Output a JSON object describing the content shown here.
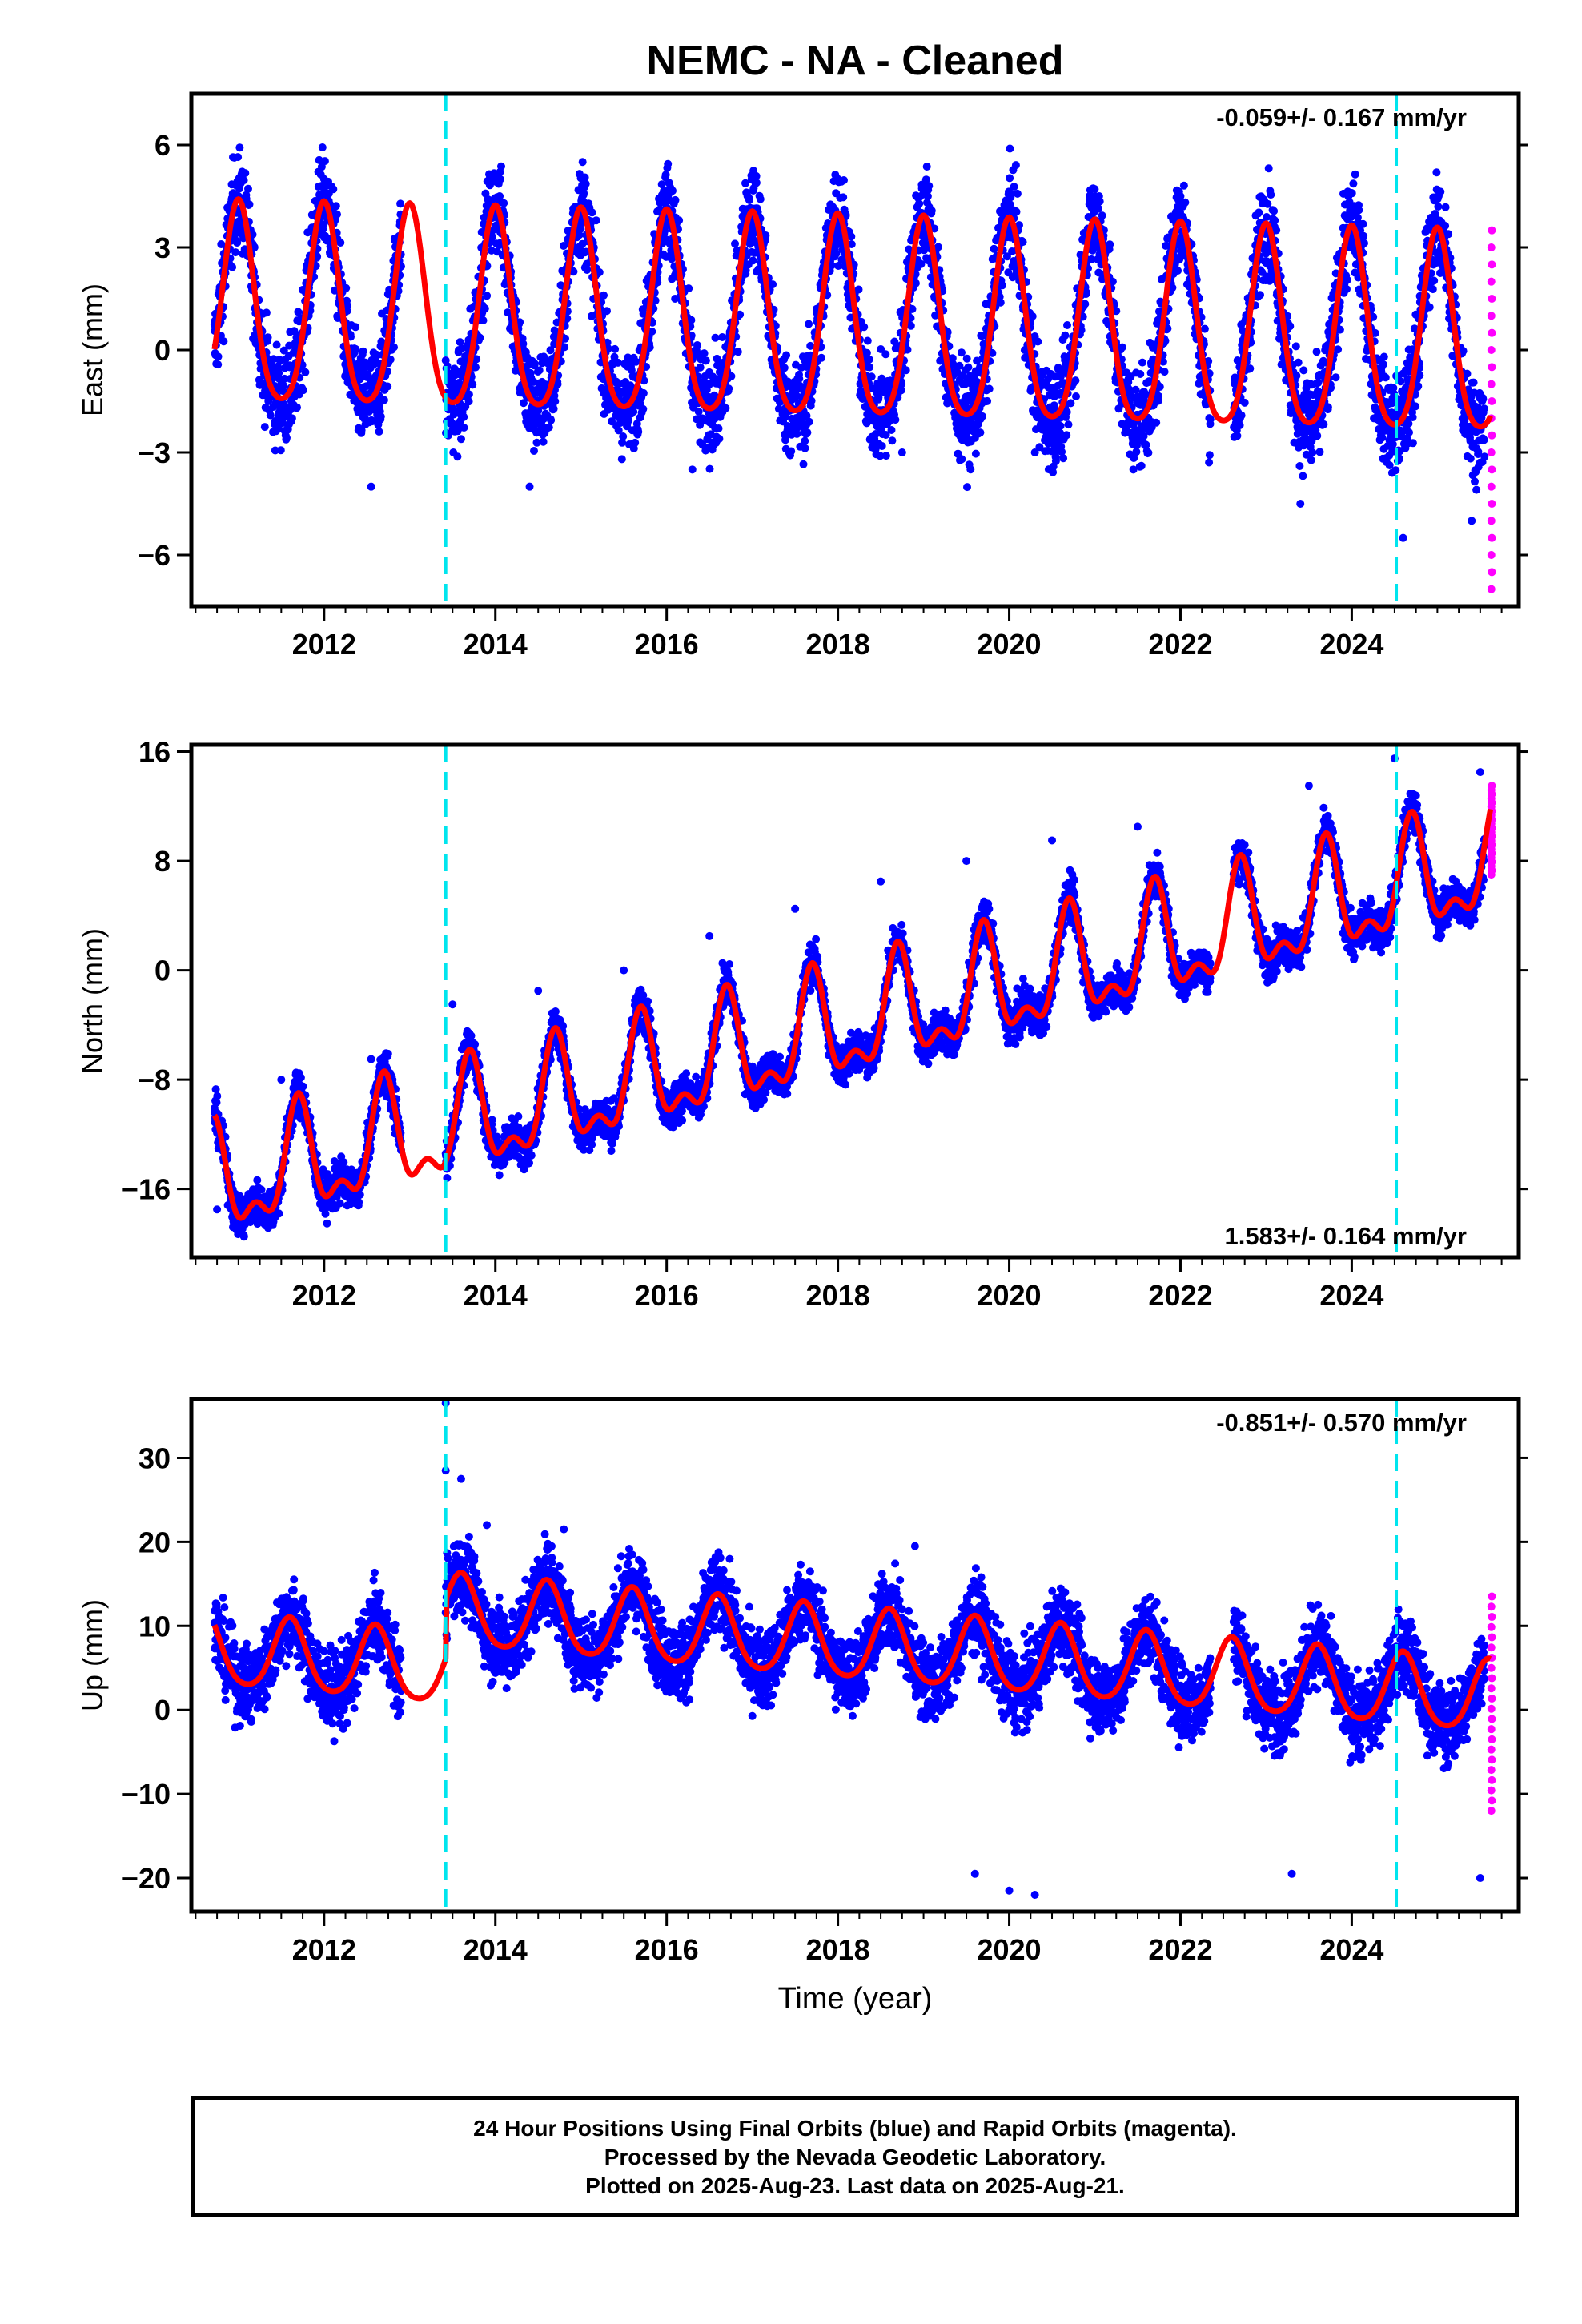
{
  "title": "NEMC  - NA - Cleaned",
  "xlabel": "Time (year)",
  "colors": {
    "final": "#0000ff",
    "rapid": "#ff00ff",
    "model": "#ff0000",
    "steps": "#00e5ee",
    "frame": "#000000"
  },
  "chart_data": [
    {
      "type": "scatter",
      "ylabel": "East (mm)",
      "xlim": [
        2010.45,
        2025.95
      ],
      "ylim": [
        -7.5,
        7.5
      ],
      "yticks": [
        6,
        3,
        0,
        -3,
        -6
      ],
      "yticklabels": [
        "6",
        "3",
        "0",
        "−3",
        "−6"
      ],
      "xticks": [
        2012,
        2014,
        2016,
        2018,
        2020,
        2022,
        2024
      ],
      "xticklabels": [
        "2012",
        "2014",
        "2016",
        "2018",
        "2020",
        "2022",
        "2024"
      ],
      "rate_label": "-0.059+/- 0.167 mm/yr",
      "rate_position": "top-right",
      "step_lines": [
        2013.42,
        2024.52
      ],
      "model": {
        "trend": -0.059,
        "ref": 2018,
        "offset": 0.6,
        "amplitude": 2.9,
        "phase": 2011.0,
        "semi_amplitude": 0.5
      },
      "series": [
        {
          "name": "Final Orbits",
          "data_segments": [
            [
              2010.72,
              2012.9
            ],
            [
              2013.42,
              2022.35
            ],
            [
              2022.62,
              2025.55
            ]
          ],
          "scatter": 1.3,
          "x": [
            2011.0,
            2011.35,
            2012.0,
            2012.55,
            2013.45,
            2014.05,
            2014.4,
            2015.0,
            2016.3,
            2018.75,
            2019.05,
            2020.0,
            2020.3,
            2021.05,
            2021.45,
            2022.0,
            2023.4,
            2024.1,
            2024.6,
            2025.4
          ],
          "y": [
            4.5,
            -1.5,
            5.0,
            -4.0,
            -2.5,
            4.5,
            -4.0,
            4.0,
            -3.5,
            -3.0,
            4.5,
            4.0,
            -3.0,
            4.5,
            -3.5,
            4.5,
            -4.5,
            3.5,
            -5.5,
            -5.0
          ]
        },
        {
          "name": "Rapid Orbits",
          "x": [
            2025.63
          ],
          "y_range": [
            -7.0,
            3.5
          ]
        }
      ]
    },
    {
      "type": "scatter",
      "ylabel": "North (mm)",
      "xlim": [
        2010.45,
        2025.95
      ],
      "ylim": [
        -21,
        16.5
      ],
      "yticks": [
        16,
        8,
        0,
        -8,
        -16
      ],
      "yticklabels": [
        "16",
        "8",
        "0",
        "−8",
        "−16"
      ],
      "xticks": [
        2012,
        2014,
        2016,
        2018,
        2020,
        2022,
        2024
      ],
      "xticklabels": [
        "2012",
        "2014",
        "2016",
        "2018",
        "2020",
        "2022",
        "2024"
      ],
      "rate_label": "1.583+/- 0.164 mm/yr",
      "rate_position": "bottom-right",
      "step_lines": [
        2013.42,
        2024.52
      ],
      "model": {
        "trend": 1.583,
        "ref": 2018,
        "offset": -4.4,
        "amplitude": 3.6,
        "phase": 2010.7,
        "semi_amplitude": 1.8
      },
      "series": [
        {
          "name": "Final Orbits",
          "data_segments": [
            [
              2010.72,
              2012.9
            ],
            [
              2013.42,
              2022.35
            ],
            [
              2022.62,
              2025.55
            ]
          ],
          "scatter": 1.4,
          "x": [
            2010.75,
            2011.5,
            2012.0,
            2012.55,
            2013.5,
            2014.5,
            2015.5,
            2016.5,
            2017.5,
            2018.5,
            2019.5,
            2020.5,
            2021.5,
            2022.9,
            2023.5,
            2024.5,
            2025.0,
            2025.5
          ],
          "y": [
            -17.5,
            -8.0,
            -16.5,
            -6.5,
            -2.5,
            -1.5,
            0.0,
            2.5,
            4.5,
            6.5,
            8.0,
            9.5,
            10.5,
            4.0,
            13.5,
            15.5,
            4.5,
            14.5
          ]
        },
        {
          "name": "Rapid Orbits",
          "x": [
            2025.63
          ],
          "y_range": [
            7.0,
            13.5
          ]
        }
      ]
    },
    {
      "type": "scatter",
      "ylabel": "Up (mm)",
      "xlim": [
        2010.45,
        2025.95
      ],
      "ylim": [
        -24,
        37
      ],
      "yticks": [
        30,
        20,
        10,
        0,
        -10,
        -20
      ],
      "yticklabels": [
        "30",
        "20",
        "10",
        "0",
        "−10",
        "−20"
      ],
      "xticks": [
        2012,
        2014,
        2016,
        2018,
        2020,
        2022,
        2024
      ],
      "xticklabels": [
        "2012",
        "2014",
        "2016",
        "2018",
        "2020",
        "2022",
        "2024"
      ],
      "rate_label": "-0.851+/- 0.570 mm/yr",
      "rate_position": "top-right",
      "step_lines": [
        2013.42,
        2024.52
      ],
      "model": {
        "trend": -0.851,
        "ref": 2018,
        "offset": 0.8,
        "amplitude": 4.2,
        "phase": 2010.6,
        "semi_amplitude": 0.6,
        "step": {
          "at": 2013.42,
          "size": 7.0
        }
      },
      "series": [
        {
          "name": "Final Orbits",
          "data_segments": [
            [
              2010.72,
              2012.9
            ],
            [
              2013.42,
              2022.35
            ],
            [
              2022.62,
              2025.55
            ]
          ],
          "scatter": 4.2,
          "x": [
            2013.42,
            2013.42,
            2013.6,
            2013.9,
            2014.8,
            2018.9,
            2019.6,
            2020.0,
            2020.3,
            2023.3,
            2025.5
          ],
          "y": [
            36.5,
            28.5,
            27.5,
            22.0,
            21.5,
            19.5,
            -19.5,
            -21.5,
            -22.0,
            -19.5,
            -20.0
          ]
        },
        {
          "name": "Rapid Orbits",
          "x": [
            2025.63
          ],
          "y_range": [
            -12.0,
            13.5
          ]
        }
      ]
    }
  ],
  "footer": {
    "line1": "24 Hour Positions Using Final Orbits (blue) and Rapid Orbits (magenta).",
    "line2": "Processed by the Nevada Geodetic Laboratory.",
    "line3": "Plotted on 2025-Aug-23. Last data on 2025-Aug-21."
  }
}
